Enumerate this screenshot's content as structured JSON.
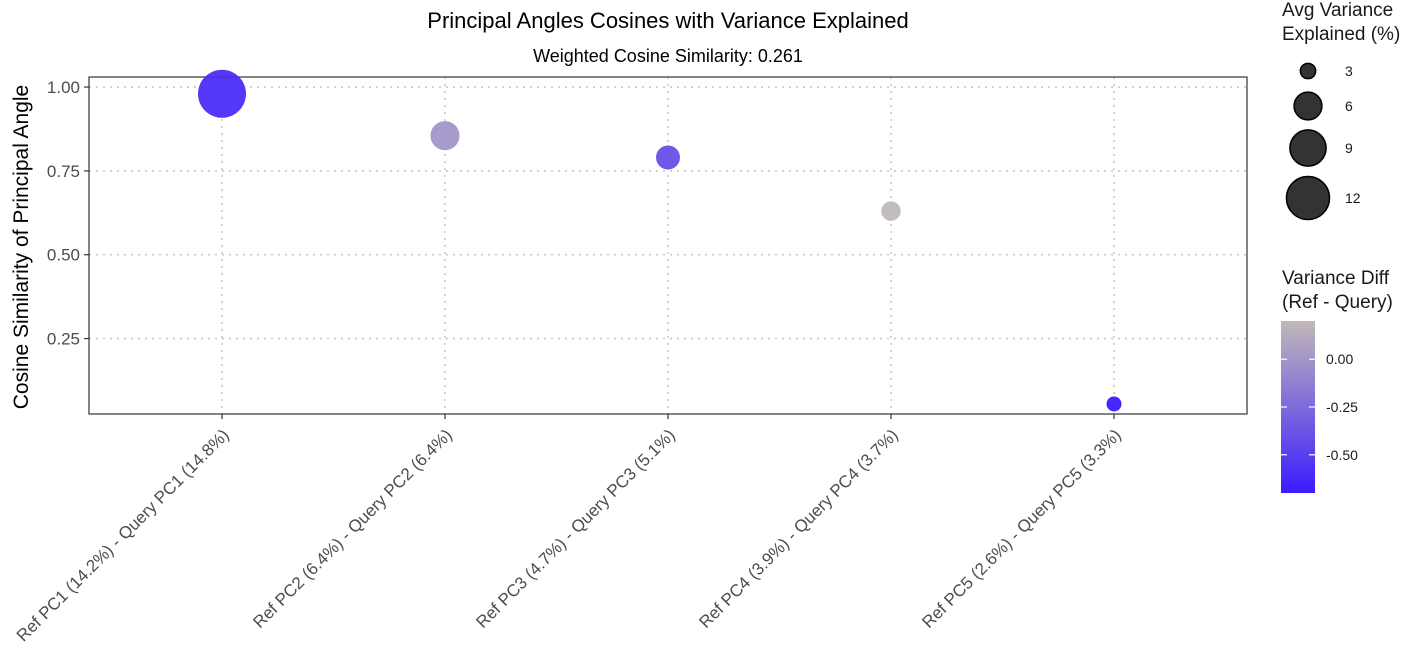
{
  "chart_data": {
    "type": "scatter",
    "title": "Principal Angles Cosines with Variance Explained",
    "subtitle": "Weighted Cosine Similarity: 0.261",
    "xlabel": "",
    "ylabel": "Cosine Similarity of Principal Angle",
    "ylim": [
      0.025,
      1.03
    ],
    "yticks": [
      {
        "value": 0.25,
        "label": "0.25"
      },
      {
        "value": 0.5,
        "label": "0.50"
      },
      {
        "value": 0.75,
        "label": "0.75"
      },
      {
        "value": 1.0,
        "label": "1.00"
      }
    ],
    "grid": true,
    "grid_style": "dotted",
    "categories": [
      "Ref PC1 (14.2%) - Query PC1 (14.8%)",
      "Ref PC2 (6.4%) - Query PC2 (6.4%)",
      "Ref PC3 (4.7%) - Query PC3 (5.1%)",
      "Ref PC4 (3.9%) - Query PC4 (3.7%)",
      "Ref PC5 (2.6%) - Query PC5 (3.3%)"
    ],
    "points": [
      {
        "cosine": 0.98,
        "avg_variance": 14.5,
        "variance_diff": -0.6
      },
      {
        "cosine": 0.855,
        "avg_variance": 6.4,
        "variance_diff": 0.0
      },
      {
        "cosine": 0.79,
        "avg_variance": 4.9,
        "variance_diff": -0.4
      },
      {
        "cosine": 0.63,
        "avg_variance": 3.8,
        "variance_diff": 0.2
      },
      {
        "cosine": 0.055,
        "avg_variance": 2.95,
        "variance_diff": -0.7
      }
    ],
    "size_legend": {
      "title_lines": [
        "Avg Variance",
        "Explained (%)"
      ],
      "entries": [
        {
          "value": 3,
          "label": "3"
        },
        {
          "value": 6,
          "label": "6"
        },
        {
          "value": 9,
          "label": "9"
        },
        {
          "value": 12,
          "label": "12"
        }
      ],
      "range": [
        2.95,
        14.5
      ]
    },
    "color_legend": {
      "title_lines": [
        "Variance Diff",
        "(Ref - Query)"
      ],
      "range": [
        -0.7,
        0.2
      ],
      "low_color": "#3b1cff",
      "high_color": "#c1b8b8",
      "ticks": [
        {
          "value": 0.0,
          "label": "0.00"
        },
        {
          "value": -0.25,
          "label": "-0.25"
        },
        {
          "value": -0.5,
          "label": "-0.50"
        }
      ]
    },
    "colors": {
      "panel_border": "#333333",
      "grid": "#c8c8c8",
      "size_legend_fill": "#333333",
      "size_legend_stroke": "#000000"
    }
  }
}
